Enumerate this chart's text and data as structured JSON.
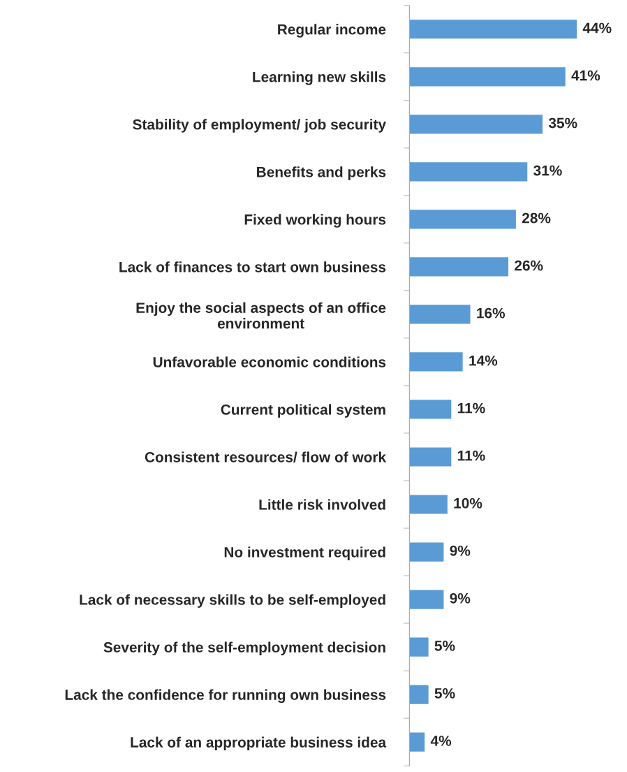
{
  "chart_data": {
    "type": "bar",
    "orientation": "horizontal",
    "categories": [
      "Regular income",
      "Learning new skills",
      "Stability of employment/ job security",
      "Benefits and perks",
      "Fixed working hours",
      "Lack of finances to start own business",
      "Enjoy the social aspects of an office\nenvironment",
      "Unfavorable economic conditions",
      "Current political system",
      "Consistent resources/ flow of work",
      "Little risk involved",
      "No investment required",
      "Lack of necessary skills to be self-employed",
      "Severity of the self-employment decision",
      "Lack the confidence for running own business",
      "Lack of an appropriate business idea"
    ],
    "values": [
      44,
      41,
      35,
      31,
      28,
      26,
      16,
      14,
      11,
      11,
      10,
      9,
      9,
      5,
      5,
      4
    ],
    "value_labels": [
      "44%",
      "41%",
      "35%",
      "31%",
      "28%",
      "26%",
      "16%",
      "14%",
      "11%",
      "11%",
      "10%",
      "9%",
      "9%",
      "5%",
      "5%",
      "4%"
    ],
    "color": "#5b9bd5",
    "tick_labels": "y",
    "grid": false,
    "legend": false
  }
}
